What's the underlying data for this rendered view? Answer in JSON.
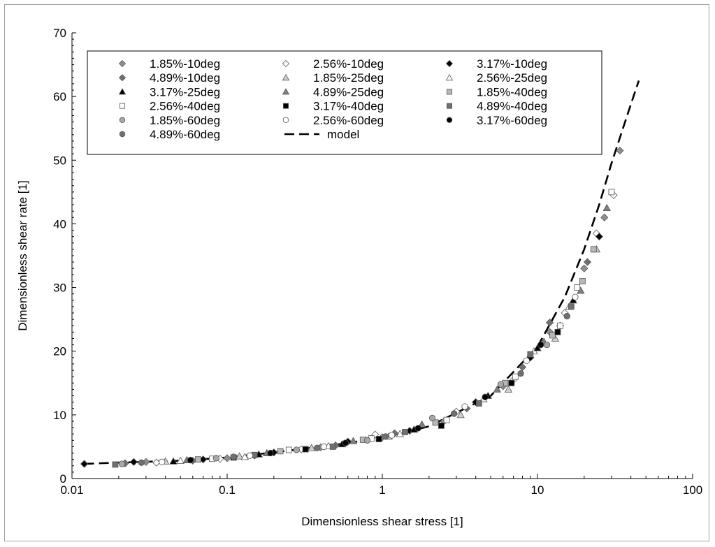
{
  "chart_data": {
    "type": "scatter",
    "xlabel": "Dimensionless shear stress [1]",
    "ylabel": "Dimensionless shear rate [1]",
    "xscale": "log",
    "xlim": [
      0.01,
      100
    ],
    "ylim": [
      0,
      70
    ],
    "x_ticks": [
      {
        "value": 0.01,
        "label": "0.01"
      },
      {
        "value": 0.1,
        "label": "0.1"
      },
      {
        "value": 1,
        "label": "1"
      },
      {
        "value": 10,
        "label": "10"
      },
      {
        "value": 100,
        "label": "100"
      }
    ],
    "y_ticks": [
      {
        "value": 0,
        "label": "0"
      },
      {
        "value": 10,
        "label": "10"
      },
      {
        "value": 20,
        "label": "20"
      },
      {
        "value": 30,
        "label": "30"
      },
      {
        "value": 40,
        "label": "40"
      },
      {
        "value": 50,
        "label": "50"
      },
      {
        "value": 60,
        "label": "60"
      },
      {
        "value": 70,
        "label": "70"
      }
    ],
    "grid": false,
    "legend_position": "top, inside plot area",
    "model": {
      "name": "model",
      "style": "dashed",
      "color": "#000000",
      "points": [
        [
          0.012,
          2.3
        ],
        [
          0.02,
          2.5
        ],
        [
          0.05,
          2.8
        ],
        [
          0.1,
          3.3
        ],
        [
          0.2,
          4.1
        ],
        [
          0.5,
          5.3
        ],
        [
          1,
          6.4
        ],
        [
          2,
          8.2
        ],
        [
          5,
          13.0
        ],
        [
          10,
          20.7
        ],
        [
          15,
          28.5
        ],
        [
          20,
          36.0
        ],
        [
          25,
          43.0
        ],
        [
          30,
          49.5
        ],
        [
          35,
          54.5
        ],
        [
          40,
          58.8
        ],
        [
          45,
          62.5
        ]
      ]
    },
    "series": [
      {
        "name": "1.85%-10deg",
        "marker": "diamond",
        "color": "#909090",
        "points": [
          [
            0.03,
            2.6
          ],
          [
            0.1,
            3.2
          ],
          [
            0.4,
            4.9
          ],
          [
            1.0,
            6.5
          ],
          [
            2.5,
            9.0
          ],
          [
            6.0,
            14.5
          ],
          [
            12.0,
            23.0
          ],
          [
            20.0,
            33.0
          ],
          [
            27.0,
            41.0
          ],
          [
            34.0,
            51.5
          ]
        ]
      },
      {
        "name": "2.56%-10deg",
        "marker": "diamond",
        "color": "#ffffff",
        "points": [
          [
            0.035,
            2.5
          ],
          [
            0.09,
            3.1
          ],
          [
            0.3,
            4.6
          ],
          [
            0.9,
            6.9
          ],
          [
            3.0,
            10.5
          ],
          [
            7.0,
            15.5
          ],
          [
            15.0,
            26.0
          ],
          [
            24.0,
            38.5
          ],
          [
            31.0,
            44.5
          ]
        ]
      },
      {
        "name": "3.17%-10deg",
        "marker": "diamond",
        "color": "#000000",
        "points": [
          [
            0.012,
            2.3
          ],
          [
            0.025,
            2.6
          ],
          [
            0.07,
            3.0
          ],
          [
            0.2,
            4.1
          ],
          [
            0.6,
            5.8
          ],
          [
            1.5,
            7.5
          ],
          [
            4.0,
            12.0
          ],
          [
            9.0,
            19.0
          ],
          [
            14.0,
            24.0
          ],
          [
            25.0,
            38.0
          ]
        ]
      },
      {
        "name": "4.89%-10deg",
        "marker": "diamond",
        "color": "#707070",
        "points": [
          [
            0.022,
            2.4
          ],
          [
            0.06,
            2.8
          ],
          [
            0.15,
            3.6
          ],
          [
            0.5,
            5.2
          ],
          [
            1.2,
            7.1
          ],
          [
            3.5,
            11.0
          ],
          [
            8.0,
            17.5
          ],
          [
            12.0,
            24.5
          ],
          [
            21.0,
            34.0
          ]
        ]
      },
      {
        "name": "1.85%-25deg",
        "marker": "triangle",
        "color": "#d0d0d0",
        "points": [
          [
            0.04,
            2.7
          ],
          [
            0.12,
            3.5
          ],
          [
            0.35,
            4.8
          ],
          [
            1.1,
            6.6
          ],
          [
            3.2,
            10.0
          ],
          [
            6.5,
            14.0
          ],
          [
            13.0,
            22.0
          ],
          [
            24.0,
            36.0
          ]
        ]
      },
      {
        "name": "2.56%-25deg",
        "marker": "triangle",
        "color": "#ffffff",
        "points": [
          [
            0.05,
            2.8
          ],
          [
            0.13,
            3.4
          ],
          [
            0.45,
            5.1
          ],
          [
            1.3,
            7.0
          ],
          [
            4.5,
            12.5
          ],
          [
            9.5,
            20.0
          ],
          [
            16.0,
            27.0
          ]
        ]
      },
      {
        "name": "3.17%-25deg",
        "marker": "triangle",
        "color": "#000000",
        "points": [
          [
            0.045,
            2.7
          ],
          [
            0.16,
            3.8
          ],
          [
            0.55,
            5.4
          ],
          [
            1.6,
            7.7
          ],
          [
            4.8,
            13.0
          ],
          [
            10.0,
            20.5
          ],
          [
            17.0,
            28.0
          ]
        ]
      },
      {
        "name": "4.89%-25deg",
        "marker": "triangle",
        "color": "#808080",
        "points": [
          [
            0.055,
            2.9
          ],
          [
            0.18,
            4.0
          ],
          [
            0.65,
            5.9
          ],
          [
            1.8,
            8.5
          ],
          [
            5.5,
            14.0
          ],
          [
            11.0,
            21.5
          ],
          [
            19.0,
            29.5
          ],
          [
            28.0,
            42.5
          ]
        ]
      },
      {
        "name": "1.85%-40deg",
        "marker": "square",
        "color": "#b8b8b8",
        "points": [
          [
            0.065,
            3.0
          ],
          [
            0.22,
            4.3
          ],
          [
            0.75,
            6.1
          ],
          [
            2.2,
            8.8
          ],
          [
            6.2,
            15.0
          ],
          [
            12.5,
            22.5
          ],
          [
            19.5,
            31.0
          ],
          [
            23.0,
            36.0
          ]
        ]
      },
      {
        "name": "2.56%-40deg",
        "marker": "square",
        "color": "#ffffff",
        "points": [
          [
            0.08,
            3.1
          ],
          [
            0.25,
            4.5
          ],
          [
            0.85,
            6.3
          ],
          [
            2.6,
            9.2
          ],
          [
            7.2,
            16.0
          ],
          [
            14.0,
            24.0
          ],
          [
            18.0,
            30.0
          ],
          [
            30.0,
            45.0
          ]
        ]
      },
      {
        "name": "3.17%-40deg",
        "marker": "square",
        "color": "#000000",
        "points": [
          [
            0.11,
            3.3
          ],
          [
            0.32,
            4.6
          ],
          [
            0.95,
            6.2
          ],
          [
            2.4,
            8.3
          ],
          [
            6.8,
            15.0
          ],
          [
            13.5,
            23.0
          ]
        ]
      },
      {
        "name": "4.89%-40deg",
        "marker": "square",
        "color": "#707070",
        "points": [
          [
            0.019,
            2.2
          ],
          [
            0.15,
            3.7
          ],
          [
            0.48,
            5.0
          ],
          [
            1.4,
            7.3
          ],
          [
            4.2,
            11.8
          ],
          [
            9.0,
            19.5
          ],
          [
            16.5,
            27.0
          ]
        ]
      },
      {
        "name": "1.85%-60deg",
        "marker": "circle",
        "color": "#a8a8a8",
        "points": [
          [
            0.021,
            2.3
          ],
          [
            0.085,
            3.2
          ],
          [
            0.28,
            4.5
          ],
          [
            0.8,
            6.0
          ],
          [
            2.1,
            9.5
          ],
          [
            5.8,
            14.8
          ],
          [
            11.5,
            21.0
          ]
        ]
      },
      {
        "name": "2.56%-60deg",
        "marker": "circle",
        "color": "#ffffff",
        "points": [
          [
            0.038,
            2.6
          ],
          [
            0.14,
            3.6
          ],
          [
            0.42,
            5.0
          ],
          [
            1.15,
            6.8
          ],
          [
            3.4,
            11.3
          ],
          [
            8.5,
            18.5
          ],
          [
            17.5,
            28.5
          ]
        ]
      },
      {
        "name": "3.17%-60deg",
        "marker": "circle",
        "color": "#000000",
        "points": [
          [
            0.058,
            2.9
          ],
          [
            0.19,
            4.0
          ],
          [
            0.58,
            5.6
          ],
          [
            1.7,
            7.9
          ],
          [
            4.6,
            12.8
          ],
          [
            10.5,
            21.0
          ]
        ]
      },
      {
        "name": "4.89%-60deg",
        "marker": "circle",
        "color": "#707070",
        "points": [
          [
            0.028,
            2.5
          ],
          [
            0.11,
            3.4
          ],
          [
            0.38,
            4.8
          ],
          [
            1.05,
            6.6
          ],
          [
            2.9,
            10.2
          ],
          [
            7.8,
            16.5
          ],
          [
            15.5,
            25.5
          ]
        ]
      }
    ]
  }
}
